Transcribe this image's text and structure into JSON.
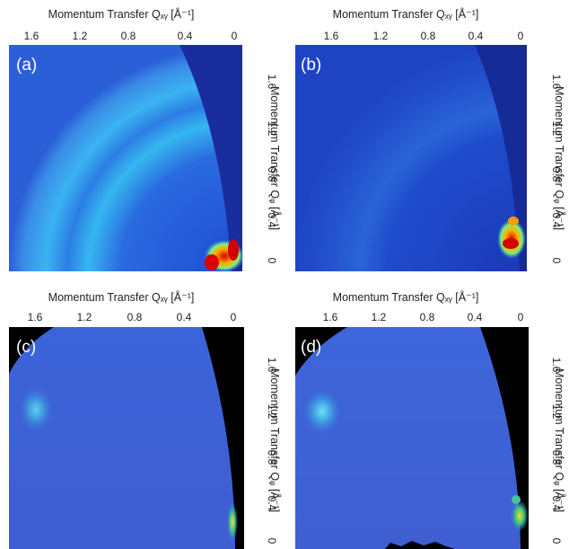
{
  "panels": [
    {
      "label": "(a)",
      "x_title": "Momentum Transfer Qₓᵧ [Å⁻¹]",
      "y_title": "Momentum Transfer Qᵩ [Å⁻¹]",
      "theme": "jet"
    },
    {
      "label": "(b)",
      "x_title": "Momentum Transfer Qₓᵧ [Å⁻¹]",
      "y_title": "Momentum Transfer Qᵩ [Å⁻¹]",
      "theme": "jet"
    },
    {
      "label": "(c)",
      "x_title": "Momentum Transfer Qₓᵧ [Å⁻¹]",
      "y_title": "Momentum Transfer Qᵩ [Å⁻¹]",
      "theme": "parula"
    },
    {
      "label": "(d)",
      "x_title": "Momentum Transfer Qₓᵧ [Å⁻¹]",
      "y_title": "Momentum Transfer Qᵩ [Å⁻¹]",
      "theme": "parula"
    }
  ],
  "chart_data": [
    {
      "type": "heatmap",
      "panel": "(a)",
      "x_ticks": [
        "1.6",
        "1.2",
        "0.8",
        "0.4",
        "0"
      ],
      "y_ticks": [
        "1.6",
        "1.2",
        "0.8",
        "0.4",
        "0"
      ],
      "xlim": [
        1.9,
        -0.05
      ],
      "ylim": [
        0,
        1.9
      ]
    },
    {
      "type": "heatmap",
      "panel": "(b)",
      "x_ticks": [
        "1.6",
        "1.2",
        "0.8",
        "0.4",
        "0"
      ],
      "y_ticks": [
        "1.6",
        "1.2",
        "0.8",
        "0.4",
        "0"
      ],
      "xlim": [
        1.9,
        -0.05
      ],
      "ylim": [
        0,
        1.9
      ]
    },
    {
      "type": "heatmap",
      "panel": "(c)",
      "x_ticks": [
        "1.6",
        "1.2",
        "0.8",
        "0.4",
        "0"
      ],
      "y_ticks": [
        "1.6",
        "1.2",
        "0.8",
        "0.4",
        "0"
      ],
      "xlim": [
        1.9,
        -0.05
      ],
      "ylim": [
        0,
        1.9
      ]
    },
    {
      "type": "heatmap",
      "panel": "(d)",
      "x_ticks": [
        "1.6",
        "1.2",
        "0.8",
        "0.4",
        "0"
      ],
      "y_ticks": [
        "1.6",
        "1.2",
        "0.8",
        "0.4",
        "0"
      ],
      "xlim": [
        1.9,
        -0.05
      ],
      "ylim": [
        0,
        1.9
      ]
    }
  ]
}
